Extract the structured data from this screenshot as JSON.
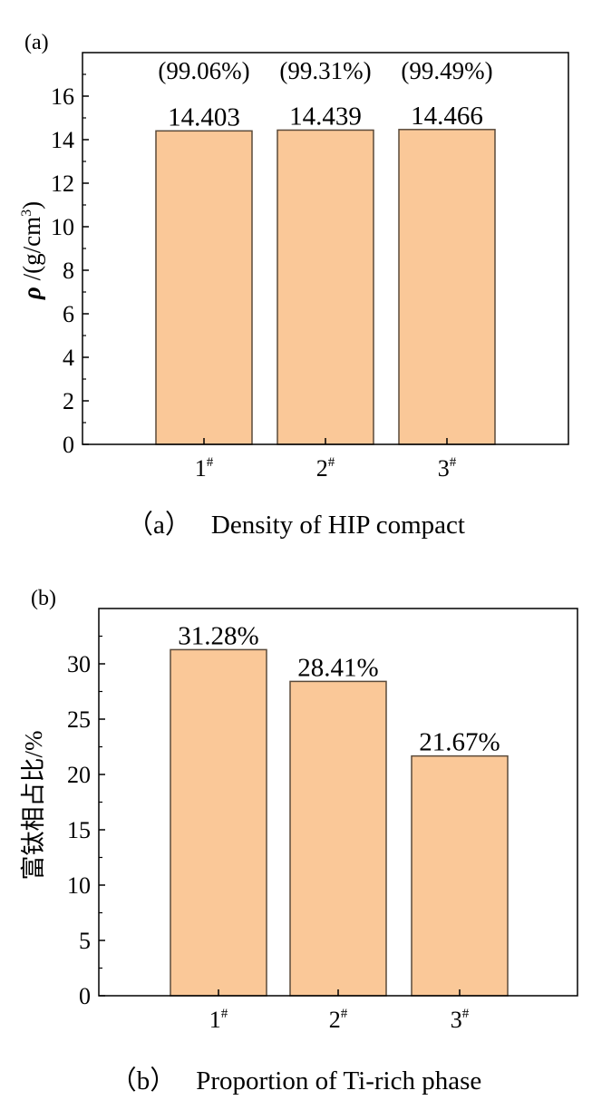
{
  "chart_data": [
    {
      "panel_label": "(a)",
      "type": "bar",
      "categories": [
        "1#",
        "2#",
        "3#"
      ],
      "category_base": [
        "1",
        "2",
        "3"
      ],
      "category_sup": "#",
      "values": [
        14.403,
        14.439,
        14.466
      ],
      "value_labels": [
        "14.403",
        "14.439",
        "14.466"
      ],
      "secondary_labels": [
        "(99.06%)",
        "(99.31%)",
        "(99.49%)"
      ],
      "ylabel_symbol": "ρ",
      "ylabel_unit": " /(g/cm",
      "ylabel_sup": "3",
      "ylabel_end": ")",
      "ylim": [
        0,
        18
      ],
      "yticks": [
        0,
        2,
        4,
        6,
        8,
        10,
        12,
        14,
        16
      ],
      "bar_color": "#fac898",
      "caption_prefix": "（a）",
      "caption": "Density of HIP compact"
    },
    {
      "panel_label": "(b)",
      "type": "bar",
      "categories": [
        "1#",
        "2#",
        "3#"
      ],
      "category_base": [
        "1",
        "2",
        "3"
      ],
      "category_sup": "#",
      "values": [
        31.28,
        28.41,
        21.67
      ],
      "value_labels": [
        "31.28%",
        "28.41%",
        "21.67%"
      ],
      "ylabel": "富钛相占比/%",
      "ylim": [
        0,
        35
      ],
      "yticks": [
        0,
        5,
        10,
        15,
        20,
        25,
        30
      ],
      "bar_color": "#fac898",
      "caption_prefix": "（b）",
      "caption": "Proportion of Ti-rich phase"
    }
  ]
}
